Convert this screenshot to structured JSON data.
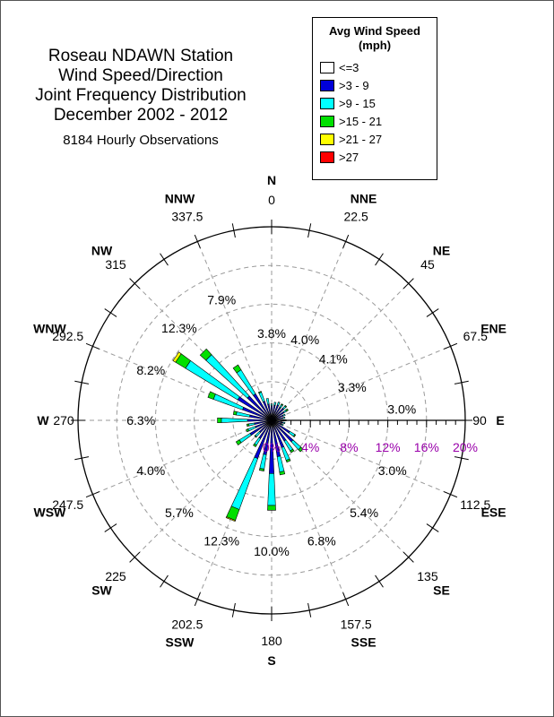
{
  "chart_data": {
    "type": "wind-rose",
    "title_lines": [
      "Roseau NDAWN Station",
      "Wind Speed/Direction",
      "Joint Frequency Distribution",
      "December 2002 - 2012"
    ],
    "subtitle": "8184 Hourly Observations",
    "legend": {
      "title_lines": [
        "Avg Wind Speed",
        "(mph)"
      ],
      "entries": [
        {
          "label": "<=3",
          "color": "#ffffff"
        },
        {
          "label": ">3 - 9",
          "color": "#0000d8"
        },
        {
          "label": ">9 - 15",
          "color": "#00ffff"
        },
        {
          "label": ">15 - 21",
          "color": "#00e000"
        },
        {
          "label": ">21 - 27",
          "color": "#ffff00"
        },
        {
          "label": ">27",
          "color": "#ff0000"
        }
      ]
    },
    "radial_axis": {
      "max": 20,
      "ticks": [
        "0%",
        "4%",
        "8%",
        "12%",
        "16%",
        "20%"
      ],
      "tick_color": "#9900aa"
    },
    "directions": [
      {
        "name": "N",
        "deg": "0"
      },
      {
        "name": "NNE",
        "deg": "22.5"
      },
      {
        "name": "NE",
        "deg": "45"
      },
      {
        "name": "ENE",
        "deg": "67.5"
      },
      {
        "name": "E",
        "deg": "90"
      },
      {
        "name": "ESE",
        "deg": "112.5"
      },
      {
        "name": "SE",
        "deg": "135"
      },
      {
        "name": "SSE",
        "deg": "157.5"
      },
      {
        "name": "S",
        "deg": "180"
      },
      {
        "name": "SSW",
        "deg": "202.5"
      },
      {
        "name": "SW",
        "deg": "225"
      },
      {
        "name": "WSW",
        "deg": "247.5"
      },
      {
        "name": "W",
        "deg": "270"
      },
      {
        "name": "WNW",
        "deg": "292.5"
      },
      {
        "name": "NW",
        "deg": "315"
      },
      {
        "name": "NNW",
        "deg": "337.5"
      }
    ],
    "series_order": [
      ">3 - 9",
      ">9 - 15",
      ">15 - 21",
      ">21 - 27"
    ],
    "sectors": [
      {
        "dir": "N",
        "angle": 0,
        "total": "3.8%",
        "segments": [
          1.5,
          0.2,
          0.0,
          0.0
        ]
      },
      {
        "dir": "N",
        "angle": 11.25,
        "total": "4.0%",
        "segments": [
          1.6,
          0.3,
          0.0,
          0.0
        ]
      },
      {
        "dir": "NNE",
        "angle": 22.5,
        "total": "4.0%",
        "segments": [
          1.7,
          0.3,
          0.0,
          0.0
        ]
      },
      {
        "dir": "NNE",
        "angle": 33.75,
        "total": "4.0%",
        "segments": [
          1.6,
          0.3,
          0.1,
          0.0
        ]
      },
      {
        "dir": "NE",
        "angle": 45,
        "total": "4.1%",
        "segments": [
          1.7,
          0.3,
          0.1,
          0.0
        ]
      },
      {
        "dir": "NE",
        "angle": 56.25,
        "total": "4.1%",
        "segments": [
          1.5,
          0.3,
          0.2,
          0.0
        ]
      },
      {
        "dir": "ENE",
        "angle": 67.5,
        "total": "3.3%",
        "segments": [
          1.3,
          0.2,
          0.0,
          0.0
        ]
      },
      {
        "dir": "ENE",
        "angle": 78.75,
        "total": "3.3%",
        "segments": [
          1.2,
          0.2,
          0.0,
          0.0
        ]
      },
      {
        "dir": "E",
        "angle": 90,
        "total": "3.0%",
        "segments": [
          1.3,
          0.2,
          0.0,
          0.0
        ]
      },
      {
        "dir": "E",
        "angle": 101.25,
        "total": "3.0%",
        "segments": [
          1.2,
          0.2,
          0.0,
          0.0
        ]
      },
      {
        "dir": "ESE",
        "angle": 112.5,
        "total": "3.0%",
        "segments": [
          1.1,
          0.2,
          0.0,
          0.0
        ]
      },
      {
        "dir": "ESE",
        "angle": 123.75,
        "total": "3.0%",
        "segments": [
          2.2,
          0.6,
          0.1,
          0.0
        ]
      },
      {
        "dir": "SE",
        "angle": 135,
        "total": "5.4%",
        "segments": [
          3.0,
          1.1,
          0.3,
          0.0
        ]
      },
      {
        "dir": "SE",
        "angle": 146.25,
        "total": "5.4%",
        "segments": [
          2.5,
          1.2,
          0.2,
          0.0
        ]
      },
      {
        "dir": "SSE",
        "angle": 157.5,
        "total": "6.8%",
        "segments": [
          3.0,
          1.4,
          0.2,
          0.0
        ]
      },
      {
        "dir": "SSE",
        "angle": 168.75,
        "total": "6.8%",
        "segments": [
          3.8,
          1.6,
          0.3,
          0.0
        ]
      },
      {
        "dir": "S",
        "angle": 180,
        "total": "10.0%",
        "segments": [
          5.5,
          3.3,
          0.5,
          0.0
        ]
      },
      {
        "dir": "S",
        "angle": 191.25,
        "total": "10.0%",
        "segments": [
          3.6,
          1.5,
          0.2,
          0.0
        ]
      },
      {
        "dir": "SSW",
        "angle": 202.5,
        "total": "12.3%",
        "segments": [
          4.2,
          5.6,
          1.2,
          0.1
        ]
      },
      {
        "dir": "SSW",
        "angle": 213.75,
        "total": "12.3%",
        "segments": [
          2.2,
          0.8,
          0.2,
          0.0
        ]
      },
      {
        "dir": "SW",
        "angle": 225,
        "total": "5.7%",
        "segments": [
          1.7,
          0.6,
          0.1,
          0.0
        ]
      },
      {
        "dir": "SW",
        "angle": 236.25,
        "total": "5.7%",
        "segments": [
          2.6,
          1.3,
          0.4,
          0.0
        ]
      },
      {
        "dir": "WSW",
        "angle": 247.5,
        "total": "4.0%",
        "segments": [
          1.8,
          0.8,
          0.2,
          0.0
        ]
      },
      {
        "dir": "WSW",
        "angle": 258.75,
        "total": "4.0%",
        "segments": [
          1.8,
          0.6,
          0.2,
          0.0
        ]
      },
      {
        "dir": "W",
        "angle": 270,
        "total": "6.3%",
        "segments": [
          2.5,
          2.7,
          0.4,
          0.0
        ]
      },
      {
        "dir": "W",
        "angle": 281.25,
        "total": "6.3%",
        "segments": [
          2.3,
          1.4,
          0.3,
          0.0
        ]
      },
      {
        "dir": "WNW",
        "angle": 292.5,
        "total": "8.2%",
        "segments": [
          3.2,
          3.2,
          0.6,
          0.0
        ]
      },
      {
        "dir": "WNW",
        "angle": 303.75,
        "total": "8.2%",
        "segments": [
          4.1,
          6.3,
          1.2,
          0.3
        ]
      },
      {
        "dir": "NW",
        "angle": 315,
        "total": "12.3%",
        "segments": [
          3.4,
          5.8,
          0.8,
          0.0
        ]
      },
      {
        "dir": "NW",
        "angle": 326.25,
        "total": "7.9%",
        "segments": [
          3.2,
          2.9,
          0.6,
          0.0
        ]
      },
      {
        "dir": "NNW",
        "angle": 337.5,
        "total": "7.9%",
        "segments": [
          2.1,
          1.0,
          0.1,
          0.0
        ]
      },
      {
        "dir": "NNW",
        "angle": 348.75,
        "total": "3.8%",
        "segments": [
          1.7,
          0.6,
          0.0,
          0.0
        ]
      }
    ],
    "sector_labels": [
      {
        "text": "3.8%",
        "angle": 0,
        "r": 9
      },
      {
        "text": "4.0%",
        "angle": 22.5,
        "r": 9
      },
      {
        "text": "4.1%",
        "angle": 45,
        "r": 9
      },
      {
        "text": "3.3%",
        "angle": 67.5,
        "r": 9
      },
      {
        "text": "3.0%",
        "angle": 85,
        "r": 13.5
      },
      {
        "text": "3.0%",
        "angle": 112.5,
        "r": 13.5
      },
      {
        "text": "5.4%",
        "angle": 135,
        "r": 13.5
      },
      {
        "text": "6.8%",
        "angle": 157.5,
        "r": 13.5
      },
      {
        "text": "10.0%",
        "angle": 180,
        "r": 13.5
      },
      {
        "text": "12.3%",
        "angle": 202.5,
        "r": 13.5
      },
      {
        "text": "5.7%",
        "angle": 225,
        "r": 13.5
      },
      {
        "text": "4.0%",
        "angle": 247.5,
        "r": 13.5
      },
      {
        "text": "6.3%",
        "angle": 270,
        "r": 13.5
      },
      {
        "text": "8.2%",
        "angle": 292.5,
        "r": 13.5
      },
      {
        "text": "12.3%",
        "angle": 315,
        "r": 13.5
      },
      {
        "text": "7.9%",
        "angle": 337.5,
        "r": 13.5
      }
    ]
  }
}
